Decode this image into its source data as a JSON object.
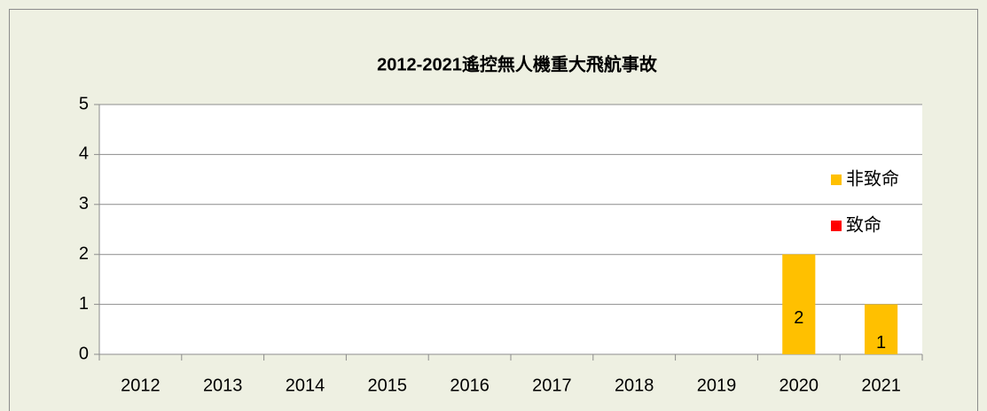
{
  "chart_data": {
    "type": "bar",
    "stacked": true,
    "title": "2012-2021遙控無人機重大飛航事故",
    "categories": [
      "2012",
      "2013",
      "2014",
      "2015",
      "2016",
      "2017",
      "2018",
      "2019",
      "2020",
      "2021"
    ],
    "series": [
      {
        "name": "致命",
        "color": "#ff0000",
        "values": [
          0,
          0,
          0,
          0,
          0,
          0,
          0,
          0,
          0,
          0
        ]
      },
      {
        "name": "非致命",
        "color": "#ffc000",
        "values": [
          0,
          0,
          0,
          0,
          0,
          0,
          0,
          0,
          2,
          1
        ]
      }
    ],
    "ylim": [
      0,
      5
    ],
    "yticks": [
      0,
      1,
      2,
      3,
      4,
      5
    ],
    "grid": true,
    "legend": "right"
  }
}
